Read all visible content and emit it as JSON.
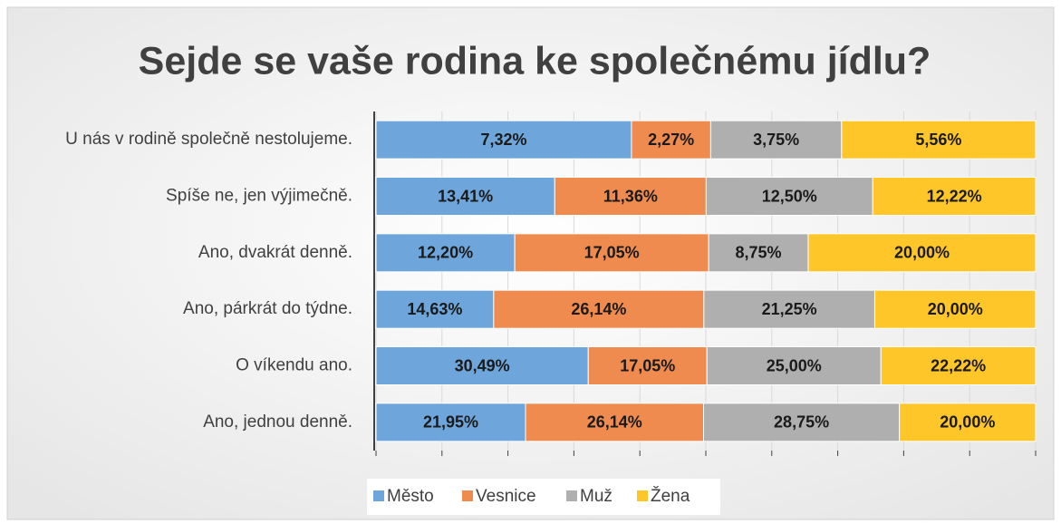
{
  "chart_data": {
    "type": "bar",
    "orientation": "horizontal",
    "stacking": "percent",
    "title": "Sejde se vaše rodina ke společnému jídlu?",
    "categories": [
      "U nás v rodině společně nestolujeme.",
      "Spíše ne, jen výjimečně.",
      "Ano, dvakrát denně.",
      "Ano, párkrát do týdne.",
      "O víkendu ano.",
      "Ano, jednou denně."
    ],
    "series": [
      {
        "name": "Město",
        "color": "#6ea6dc",
        "values": [
          7.32,
          13.41,
          12.2,
          14.63,
          30.49,
          21.95
        ],
        "value_labels": [
          "7,32%",
          "13,41%",
          "12,20%",
          "14,63%",
          "30,49%",
          "21,95%"
        ]
      },
      {
        "name": "Vesnice",
        "color": "#ef8b4f",
        "values": [
          2.27,
          11.36,
          17.05,
          26.14,
          17.05,
          26.14
        ],
        "value_labels": [
          "2,27%",
          "11,36%",
          "17,05%",
          "26,14%",
          "17,05%",
          "26,14%"
        ]
      },
      {
        "name": "Muž",
        "color": "#afafaf",
        "values": [
          3.75,
          12.5,
          8.75,
          21.25,
          25.0,
          28.75
        ],
        "value_labels": [
          "3,75%",
          "12,50%",
          "8,75%",
          "21,25%",
          "25,00%",
          "28,75%"
        ]
      },
      {
        "name": "Žena",
        "color": "#ffc629",
        "values": [
          5.56,
          12.22,
          20.0,
          20.0,
          22.22,
          20.0
        ],
        "value_labels": [
          "5,56%",
          "12,22%",
          "20,00%",
          "20,00%",
          "22,22%",
          "20,00%"
        ]
      }
    ],
    "xlim": [
      0,
      100
    ],
    "xticks": [
      0,
      10,
      20,
      30,
      40,
      50,
      60,
      70,
      80,
      90,
      100
    ],
    "grid": true,
    "legend": "bottom"
  }
}
